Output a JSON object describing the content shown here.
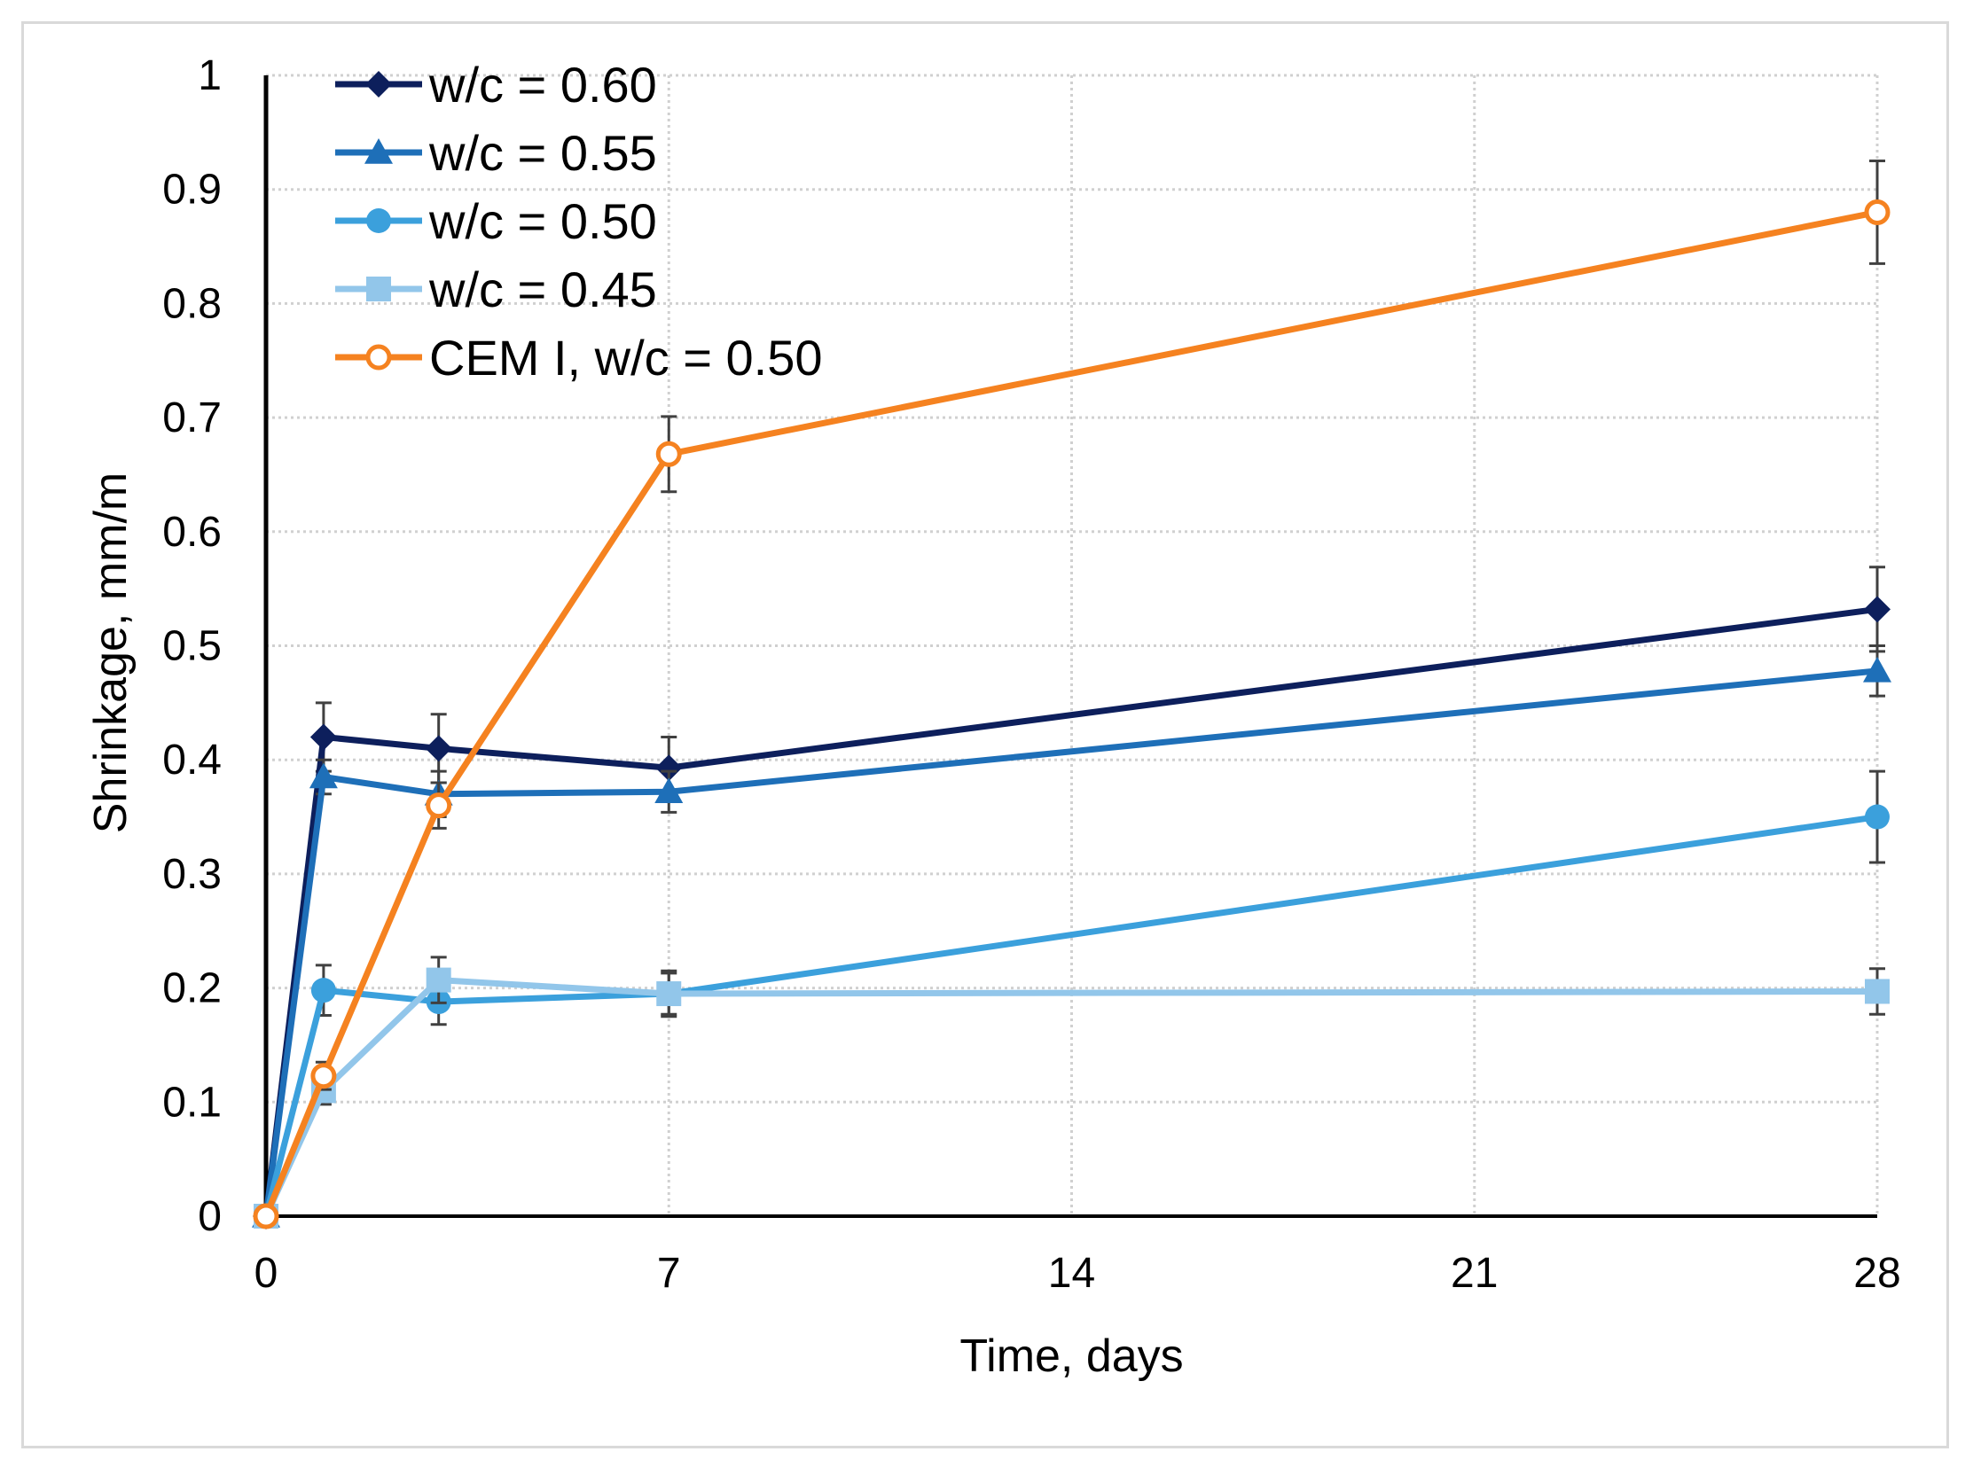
{
  "chart_data": {
    "type": "line",
    "title": "",
    "xlabel": "Time, days",
    "ylabel": "Shrinkage, mm/m",
    "xlim": [
      0,
      28
    ],
    "ylim": [
      0,
      1
    ],
    "x_ticks": [
      0,
      7,
      14,
      21,
      28
    ],
    "x_tick_labels": [
      "0",
      "7",
      "14",
      "21",
      "28"
    ],
    "y_ticks": [
      0,
      0.1,
      0.2,
      0.3,
      0.4,
      0.5,
      0.6,
      0.7,
      0.8,
      0.9,
      1
    ],
    "y_tick_labels": [
      "0",
      "0.1",
      "0.2",
      "0.3",
      "0.4",
      "0.5",
      "0.6",
      "0.7",
      "0.8",
      "0.9",
      "1"
    ],
    "grid": "dotted",
    "legend_position": "top-left",
    "series": [
      {
        "name": "w/c = 0.60",
        "color": "#0d1f5c",
        "marker": "diamond",
        "x": [
          0,
          1,
          3,
          7,
          28
        ],
        "y": [
          0,
          0.42,
          0.41,
          0.393,
          0.532
        ],
        "err": [
          0,
          0.03,
          0.03,
          0.027,
          0.037
        ]
      },
      {
        "name": "w/c = 0.55",
        "color": "#1e6fb8",
        "marker": "triangle",
        "x": [
          0,
          1,
          3,
          7,
          28
        ],
        "y": [
          0,
          0.385,
          0.37,
          0.372,
          0.478
        ],
        "err": [
          0,
          0.015,
          0.02,
          0.018,
          0.022
        ]
      },
      {
        "name": "w/c = 0.50",
        "color": "#3ba0dc",
        "marker": "circle",
        "x": [
          0,
          1,
          3,
          7,
          28
        ],
        "y": [
          0,
          0.198,
          0.188,
          0.195,
          0.35
        ],
        "err": [
          0,
          0.022,
          0.02,
          0.02,
          0.04
        ]
      },
      {
        "name": "w/c = 0.45",
        "color": "#92c6ea",
        "marker": "square",
        "x": [
          0,
          1,
          3,
          7,
          28
        ],
        "y": [
          0,
          0.11,
          0.207,
          0.195,
          0.197
        ],
        "err": [
          0,
          0.012,
          0.02,
          0.018,
          0.02
        ]
      },
      {
        "name": "CEM I, w/c = 0.50",
        "color": "#f58220",
        "marker": "open-circle",
        "x": [
          0,
          1,
          3,
          7,
          28
        ],
        "y": [
          0,
          0.123,
          0.36,
          0.668,
          0.88
        ],
        "err": [
          0,
          0.012,
          0.02,
          0.033,
          0.045
        ]
      }
    ]
  }
}
